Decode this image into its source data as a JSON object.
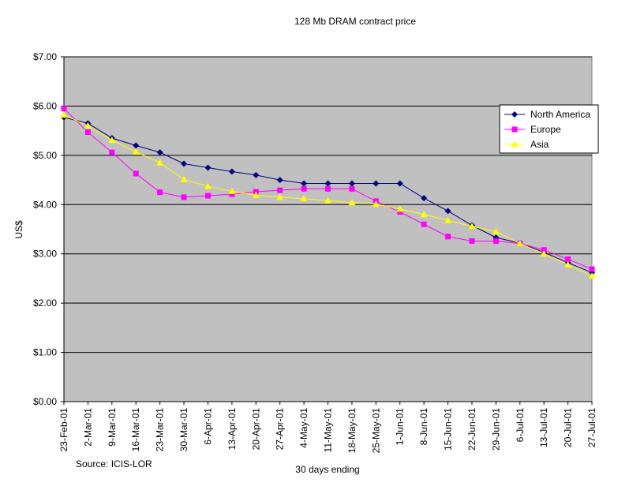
{
  "chart_data": {
    "type": "line",
    "title": "128 Mb DRAM contract price",
    "xlabel": "30 days ending",
    "ylabel": "US$",
    "source_note": "Source: ICIS-LOR",
    "ylim": [
      0,
      7
    ],
    "y_ticks": [
      "$0.00",
      "$1.00",
      "$2.00",
      "$3.00",
      "$4.00",
      "$5.00",
      "$6.00",
      "$7.00"
    ],
    "y_tick_values": [
      0,
      1,
      2,
      3,
      4,
      5,
      6,
      7
    ],
    "grid": "horizontal",
    "legend_position": "top-right",
    "categories": [
      "23-Feb-01",
      "2-Mar-01",
      "9-Mar-01",
      "16-Mar-01",
      "23-Mar-01",
      "30-Mar-01",
      "6-Apr-01",
      "13-Apr-01",
      "20-Apr-01",
      "27-Apr-01",
      "4-May-01",
      "11-May-01",
      "18-May-01",
      "25-May-01",
      "1-Jun-01",
      "8-Jun-01",
      "15-Jun-01",
      "22-Jun-01",
      "29-Jun-01",
      "6-Jul-01",
      "13-Jul-01",
      "20-Jul-01",
      "27-Jul-01"
    ],
    "series": [
      {
        "name": "North America",
        "color": "#000080",
        "marker": "diamond",
        "values": [
          5.77,
          5.65,
          5.35,
          5.2,
          5.06,
          4.83,
          4.75,
          4.67,
          4.6,
          4.5,
          4.43,
          4.43,
          4.43,
          4.43,
          4.43,
          4.13,
          3.87,
          3.58,
          3.33,
          3.22,
          3.03,
          2.82,
          2.62
        ]
      },
      {
        "name": "Europe",
        "color": "#ff00ff",
        "marker": "square",
        "values": [
          5.95,
          5.47,
          5.06,
          4.63,
          4.25,
          4.15,
          4.18,
          4.21,
          4.26,
          4.29,
          4.32,
          4.32,
          4.32,
          4.07,
          3.85,
          3.6,
          3.35,
          3.26,
          3.26,
          3.21,
          3.08,
          2.89,
          2.69
        ]
      },
      {
        "name": "Asia",
        "color": "#ffff00",
        "marker": "triangle",
        "values": [
          5.82,
          5.6,
          5.31,
          5.07,
          4.85,
          4.51,
          4.37,
          4.27,
          4.19,
          4.15,
          4.12,
          4.08,
          4.04,
          4.01,
          3.91,
          3.8,
          3.68,
          3.56,
          3.45,
          3.21,
          3.0,
          2.78,
          2.55
        ]
      }
    ]
  }
}
